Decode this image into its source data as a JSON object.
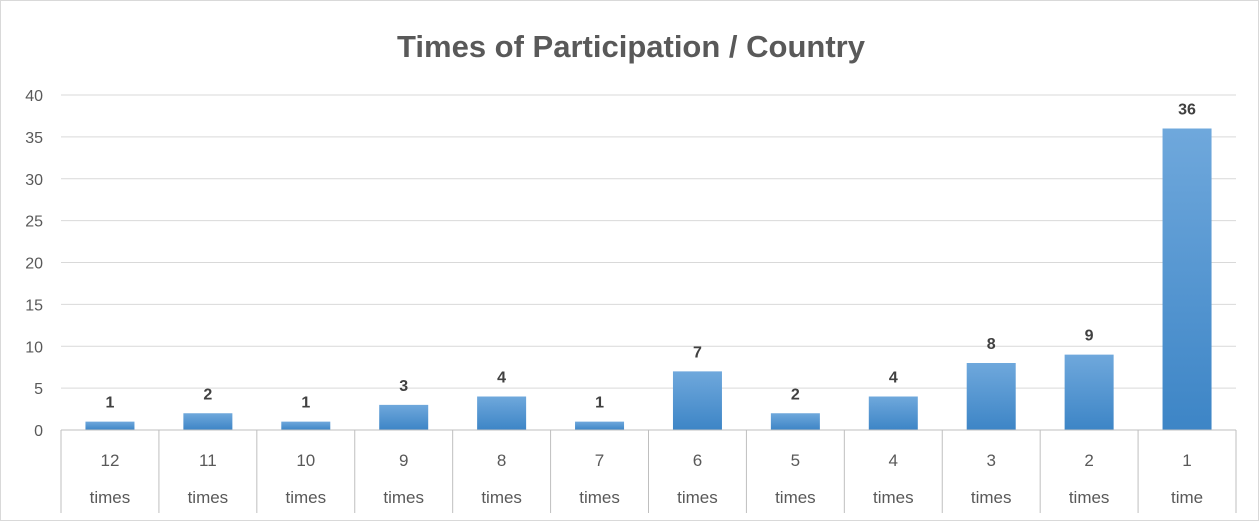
{
  "chart_data": {
    "type": "bar",
    "title": "Times of Participation  / Country",
    "xlabel": "",
    "ylabel": "",
    "categories": [
      {
        "number": "12",
        "unit": "times"
      },
      {
        "number": "11",
        "unit": "times"
      },
      {
        "number": "10",
        "unit": "times"
      },
      {
        "number": "9",
        "unit": "times"
      },
      {
        "number": "8",
        "unit": "times"
      },
      {
        "number": "7",
        "unit": "times"
      },
      {
        "number": "6",
        "unit": "times"
      },
      {
        "number": "5",
        "unit": "times"
      },
      {
        "number": "4",
        "unit": "times"
      },
      {
        "number": "3",
        "unit": "times"
      },
      {
        "number": "2",
        "unit": "times"
      },
      {
        "number": "1",
        "unit": "time"
      }
    ],
    "values": [
      1,
      2,
      1,
      3,
      4,
      1,
      7,
      2,
      4,
      8,
      9,
      36
    ],
    "data_labels": [
      "1",
      "2",
      "1",
      "3",
      "4",
      "1",
      "7",
      "2",
      "4",
      "8",
      "9",
      "36"
    ],
    "ylim": [
      0,
      40
    ],
    "yticks": [
      0,
      5,
      10,
      15,
      20,
      25,
      30,
      35,
      40
    ],
    "ytick_labels": [
      "0",
      "5",
      "10",
      "15",
      "20",
      "25",
      "30",
      "35",
      "40"
    ],
    "grid": true,
    "legend": "none",
    "bar_color_top": "#6fa8dc",
    "bar_color_bottom": "#3d85c6"
  }
}
